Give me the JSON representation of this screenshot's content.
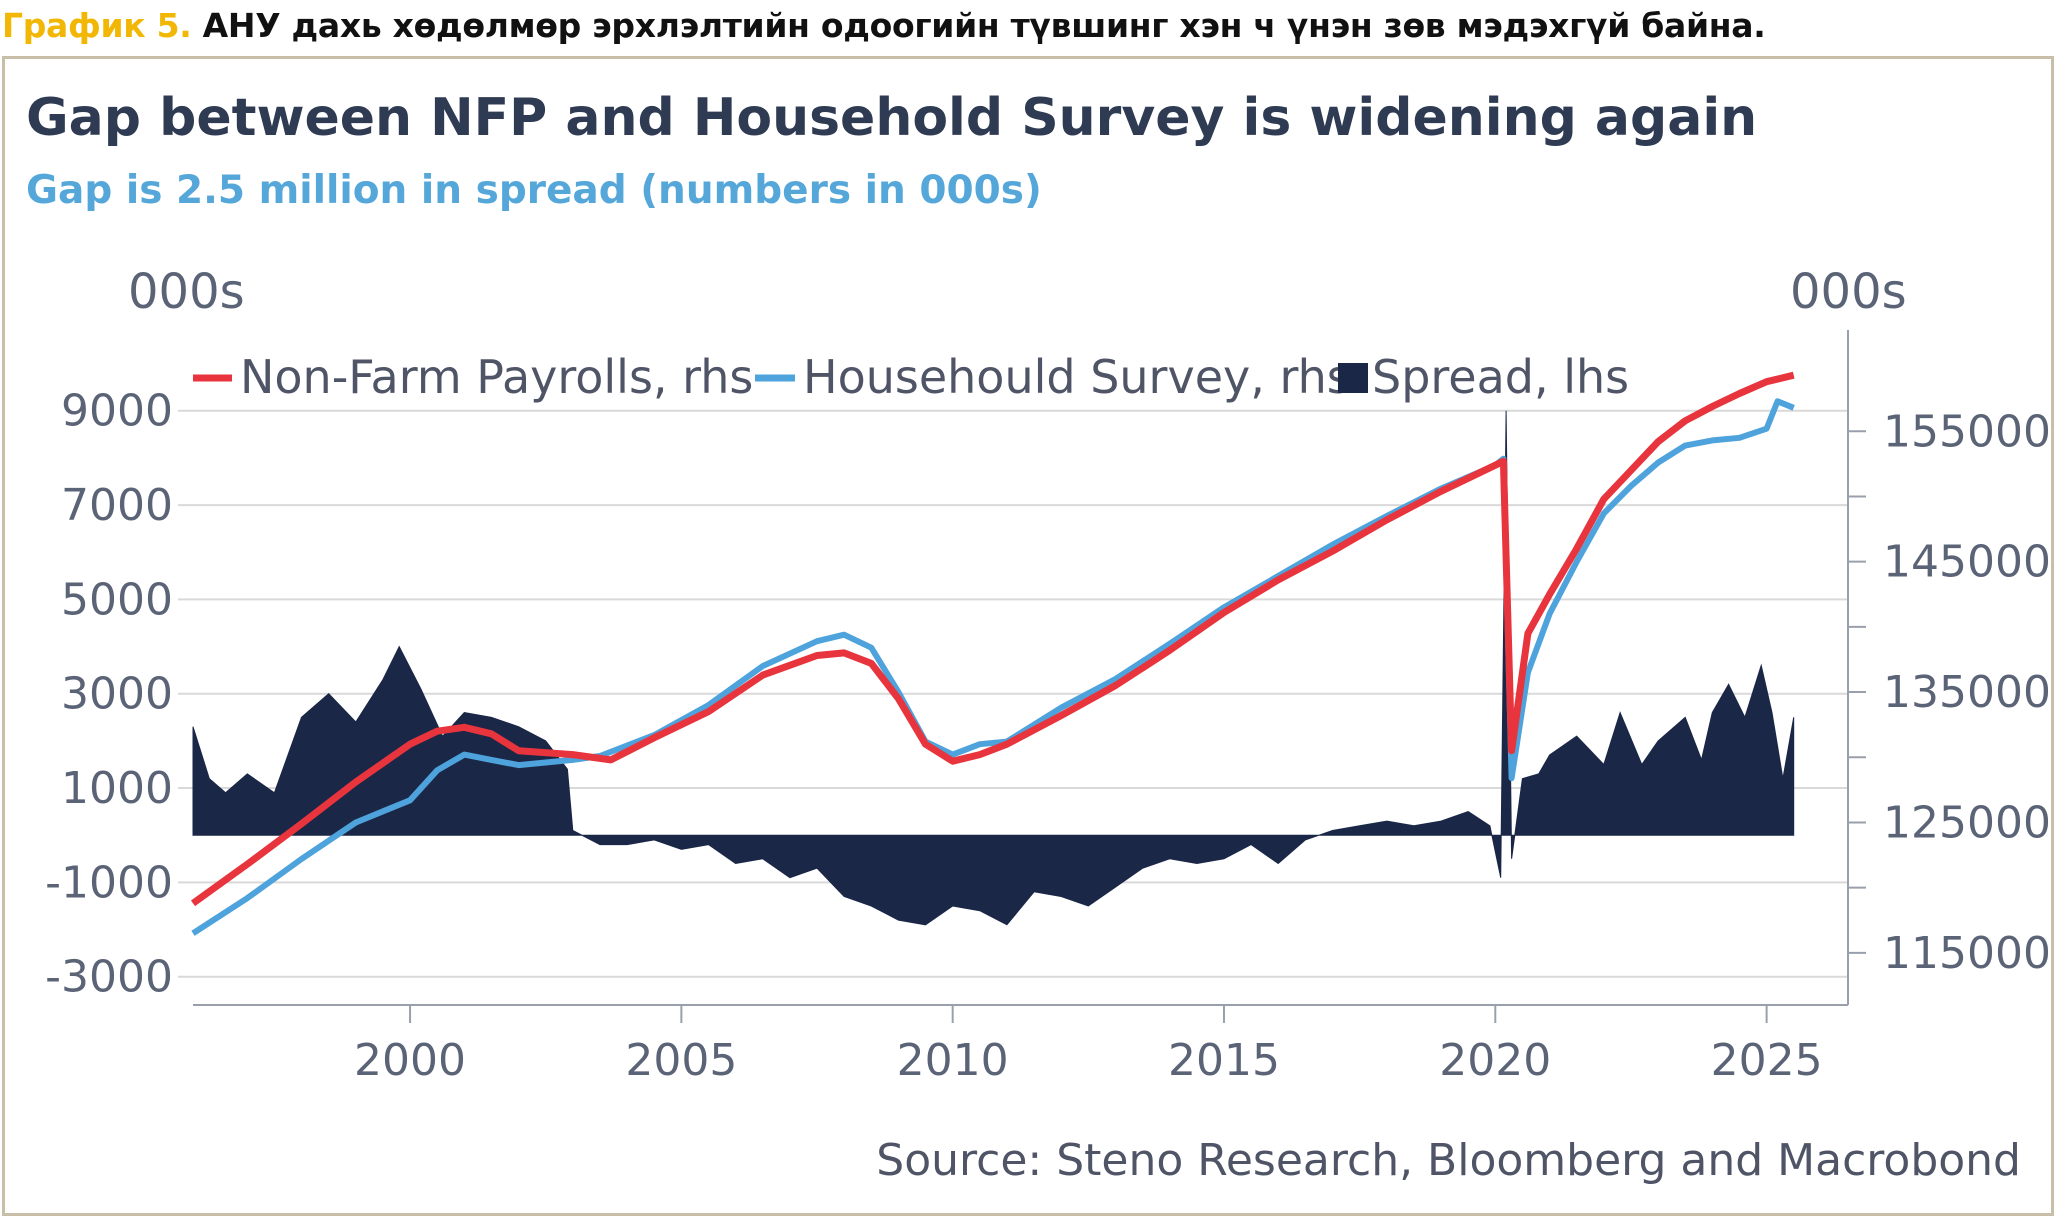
{
  "caption": {
    "lead": "График 5.",
    "text": "АНУ дахь хөдөлмөр эрхлэлтийн одоогийн түвшинг хэн ч үнэн зөв мэдэхгүй байна."
  },
  "colors": {
    "nfp": "#e8343c",
    "household": "#4ea3dc",
    "spread": "#1b2747",
    "grid": "#d9d9d9",
    "axis": "#5b6376"
  },
  "chart_data": {
    "type": "line",
    "title": "Gap between NFP and Household Survey is widening again",
    "subtitle": "Gap is 2.5 million in spread (numbers in 000s)",
    "left_unit": "000s",
    "right_unit": "000s",
    "source": "Source: Steno Research, Bloomberg and Macrobond",
    "xlim": [
      1996,
      2026.5
    ],
    "ylim_left": [
      -3600,
      10500
    ],
    "ylim_right": [
      111000,
      162000
    ],
    "x_ticks": [
      "2000",
      "2005",
      "2010",
      "2015",
      "2020",
      "2025"
    ],
    "left_ticks": [
      "9000",
      "7000",
      "5000",
      "3000",
      "1000",
      "-1000",
      "-3000"
    ],
    "right_ticks": [
      "155000",
      "145000",
      "135000",
      "125000",
      "115000"
    ],
    "legend_position": "top",
    "legend": [
      "Non-Farm Payrolls, rhs",
      "Househould Survey, rhs",
      "Spread, lhs"
    ],
    "series": [
      {
        "name": "Non-Farm Payrolls, rhs",
        "axis": "right",
        "x": [
          1996.0,
          1997.0,
          1998.0,
          1999.0,
          2000.0,
          2000.5,
          2001.0,
          2001.5,
          2002.0,
          2003.0,
          2003.7,
          2004.5,
          2005.5,
          2006.5,
          2007.5,
          2008.0,
          2008.5,
          2009.0,
          2009.5,
          2010.0,
          2010.5,
          2011.0,
          2012.0,
          2013.0,
          2014.0,
          2015.0,
          2016.0,
          2017.0,
          2018.0,
          2019.0,
          2020.0,
          2020.15,
          2020.3,
          2020.6,
          2021.0,
          2021.5,
          2022.0,
          2022.5,
          2023.0,
          2023.5,
          2024.0,
          2024.5,
          2025.0,
          2025.5
        ],
        "values": [
          118800,
          121800,
          124900,
          128100,
          131000,
          132000,
          132300,
          131800,
          130500,
          130200,
          129800,
          131500,
          133500,
          136300,
          137800,
          138000,
          137200,
          134500,
          131000,
          129700,
          130200,
          131000,
          133200,
          135500,
          138200,
          141100,
          143600,
          145800,
          148200,
          150400,
          152400,
          152700,
          130500,
          139500,
          142500,
          146000,
          149800,
          152000,
          154200,
          155800,
          156900,
          157900,
          158800,
          159300
        ]
      },
      {
        "name": "Househould Survey, rhs",
        "axis": "right",
        "x": [
          1996.0,
          1997.0,
          1998.0,
          1999.0,
          2000.0,
          2000.5,
          2001.0,
          2001.5,
          2002.0,
          2003.0,
          2003.5,
          2004.5,
          2005.5,
          2006.5,
          2007.5,
          2008.0,
          2008.5,
          2009.0,
          2009.5,
          2010.0,
          2010.5,
          2011.0,
          2012.0,
          2013.0,
          2014.0,
          2015.0,
          2016.0,
          2017.0,
          2018.0,
          2019.0,
          2020.0,
          2020.15,
          2020.3,
          2020.6,
          2021.0,
          2021.5,
          2022.0,
          2022.5,
          2023.0,
          2023.5,
          2024.0,
          2024.5,
          2025.0,
          2025.2,
          2025.5
        ],
        "values": [
          116500,
          119200,
          122200,
          125000,
          126700,
          129000,
          130200,
          129800,
          129400,
          129800,
          130100,
          131700,
          134000,
          137000,
          138900,
          139400,
          138400,
          135000,
          131200,
          130200,
          131000,
          131200,
          133800,
          136000,
          138700,
          141500,
          143900,
          146300,
          148500,
          150600,
          152400,
          152900,
          128400,
          136500,
          141000,
          145000,
          148700,
          150800,
          152600,
          153900,
          154300,
          154500,
          155200,
          157300,
          156800
        ]
      },
      {
        "name": "Spread, lhs",
        "axis": "left",
        "type": "area",
        "x": [
          1996.0,
          1996.3,
          1996.6,
          1997.0,
          1997.5,
          1998.0,
          1998.5,
          1999.0,
          1999.5,
          1999.8,
          2000.2,
          2000.6,
          2001.0,
          2001.5,
          2002.0,
          2002.5,
          2002.9,
          2003.0,
          2003.5,
          2004.0,
          2004.5,
          2005.0,
          2005.5,
          2006.0,
          2006.5,
          2007.0,
          2007.5,
          2008.0,
          2008.5,
          2009.0,
          2009.5,
          2010.0,
          2010.5,
          2011.0,
          2011.5,
          2012.0,
          2012.5,
          2013.0,
          2013.5,
          2014.0,
          2014.5,
          2015.0,
          2015.5,
          2016.0,
          2016.5,
          2017.0,
          2017.5,
          2018.0,
          2018.5,
          2019.0,
          2019.5,
          2019.9,
          2020.1,
          2020.2,
          2020.3,
          2020.5,
          2020.8,
          2021.0,
          2021.5,
          2022.0,
          2022.3,
          2022.7,
          2023.0,
          2023.5,
          2023.8,
          2024.0,
          2024.3,
          2024.6,
          2024.9,
          2025.1,
          2025.3,
          2025.5
        ],
        "values": [
          2300,
          1200,
          900,
          1300,
          900,
          2500,
          3000,
          2400,
          3300,
          4000,
          3100,
          2100,
          2600,
          2500,
          2300,
          2000,
          1400,
          100,
          -200,
          -200,
          -100,
          -300,
          -200,
          -600,
          -500,
          -900,
          -700,
          -1300,
          -1500,
          -1800,
          -1900,
          -1500,
          -1600,
          -1900,
          -1200,
          -1300,
          -1500,
          -1100,
          -700,
          -500,
          -600,
          -500,
          -200,
          -600,
          -100,
          100,
          200,
          300,
          200,
          300,
          500,
          200,
          -900,
          9000,
          -500,
          1200,
          1300,
          1700,
          2100,
          1500,
          2600,
          1500,
          2000,
          2500,
          1600,
          2600,
          3200,
          2500,
          3600,
          2600,
          1200,
          2500
        ]
      }
    ]
  }
}
